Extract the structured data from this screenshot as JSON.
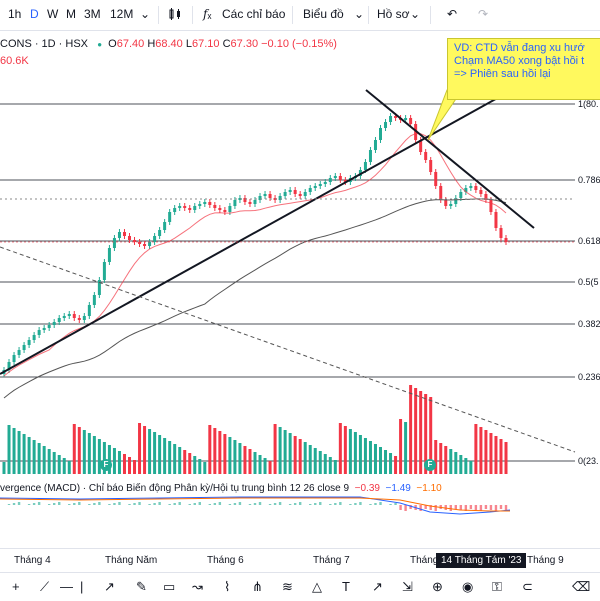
{
  "toolbar": {
    "intervals": [
      "1h",
      "D",
      "W",
      "M",
      "3M",
      "12M"
    ],
    "active_interval": "D",
    "chart_type_icon": "candles-icon",
    "indicators_label": "Các chỉ báo",
    "chart_label": "Biểu đồ",
    "profile_label": "Hồ sơ"
  },
  "legend": {
    "symbol": "CONS · 1D · HSX",
    "o_label": "O",
    "o_value": "67.40",
    "h_label": "H",
    "h_value": "68.40",
    "l_label": "L",
    "l_value": "67.10",
    "c_label": "C",
    "c_value": "67.30",
    "change": "−0.10 (−0.15%)",
    "volume": "60.6K"
  },
  "callout": {
    "line1": "VD: CTD vẫn đang xu hướ",
    "line2": "Chạm MA50 xong bật hồi t",
    "line3": "=> Phiên sau hồi lại"
  },
  "fib_labels": [
    "1(80.",
    "0.786",
    "0.618",
    "0.5(5",
    "0.382",
    "0.236",
    "0(23."
  ],
  "macd": {
    "label": "vergence (MACD) · Chỉ báo Biến động Phân kỳ/Hội tụ trung bình 12 26 close 9",
    "v1": "−0.39",
    "v2": "−1.49",
    "v3": "−1.10"
  },
  "months": [
    "Tháng 4",
    "Tháng Năm",
    "Tháng 6",
    "Tháng 7",
    "Tháng",
    "Tháng 9"
  ],
  "date_badge": "14 Tháng Tám '23",
  "earnings_flag": "F",
  "drawing_tools": [
    "crosshair-icon",
    "trend-line-icon",
    "horizontal-line-icon",
    "vertical-line-icon",
    "ray-icon",
    "brush-icon",
    "rectangle-icon",
    "path-icon",
    "polyline-icon",
    "pitchfork-icon",
    "fib-icon",
    "triangle-icon",
    "text-icon",
    "arrow-icon",
    "measure-icon",
    "zoom-icon",
    "eye-icon",
    "lock-icon",
    "magnet-icon",
    "trash-icon"
  ],
  "colors": {
    "up": "#22ab94",
    "down": "#f23645",
    "accent": "#2962ff",
    "callout": "#fff95e"
  }
}
